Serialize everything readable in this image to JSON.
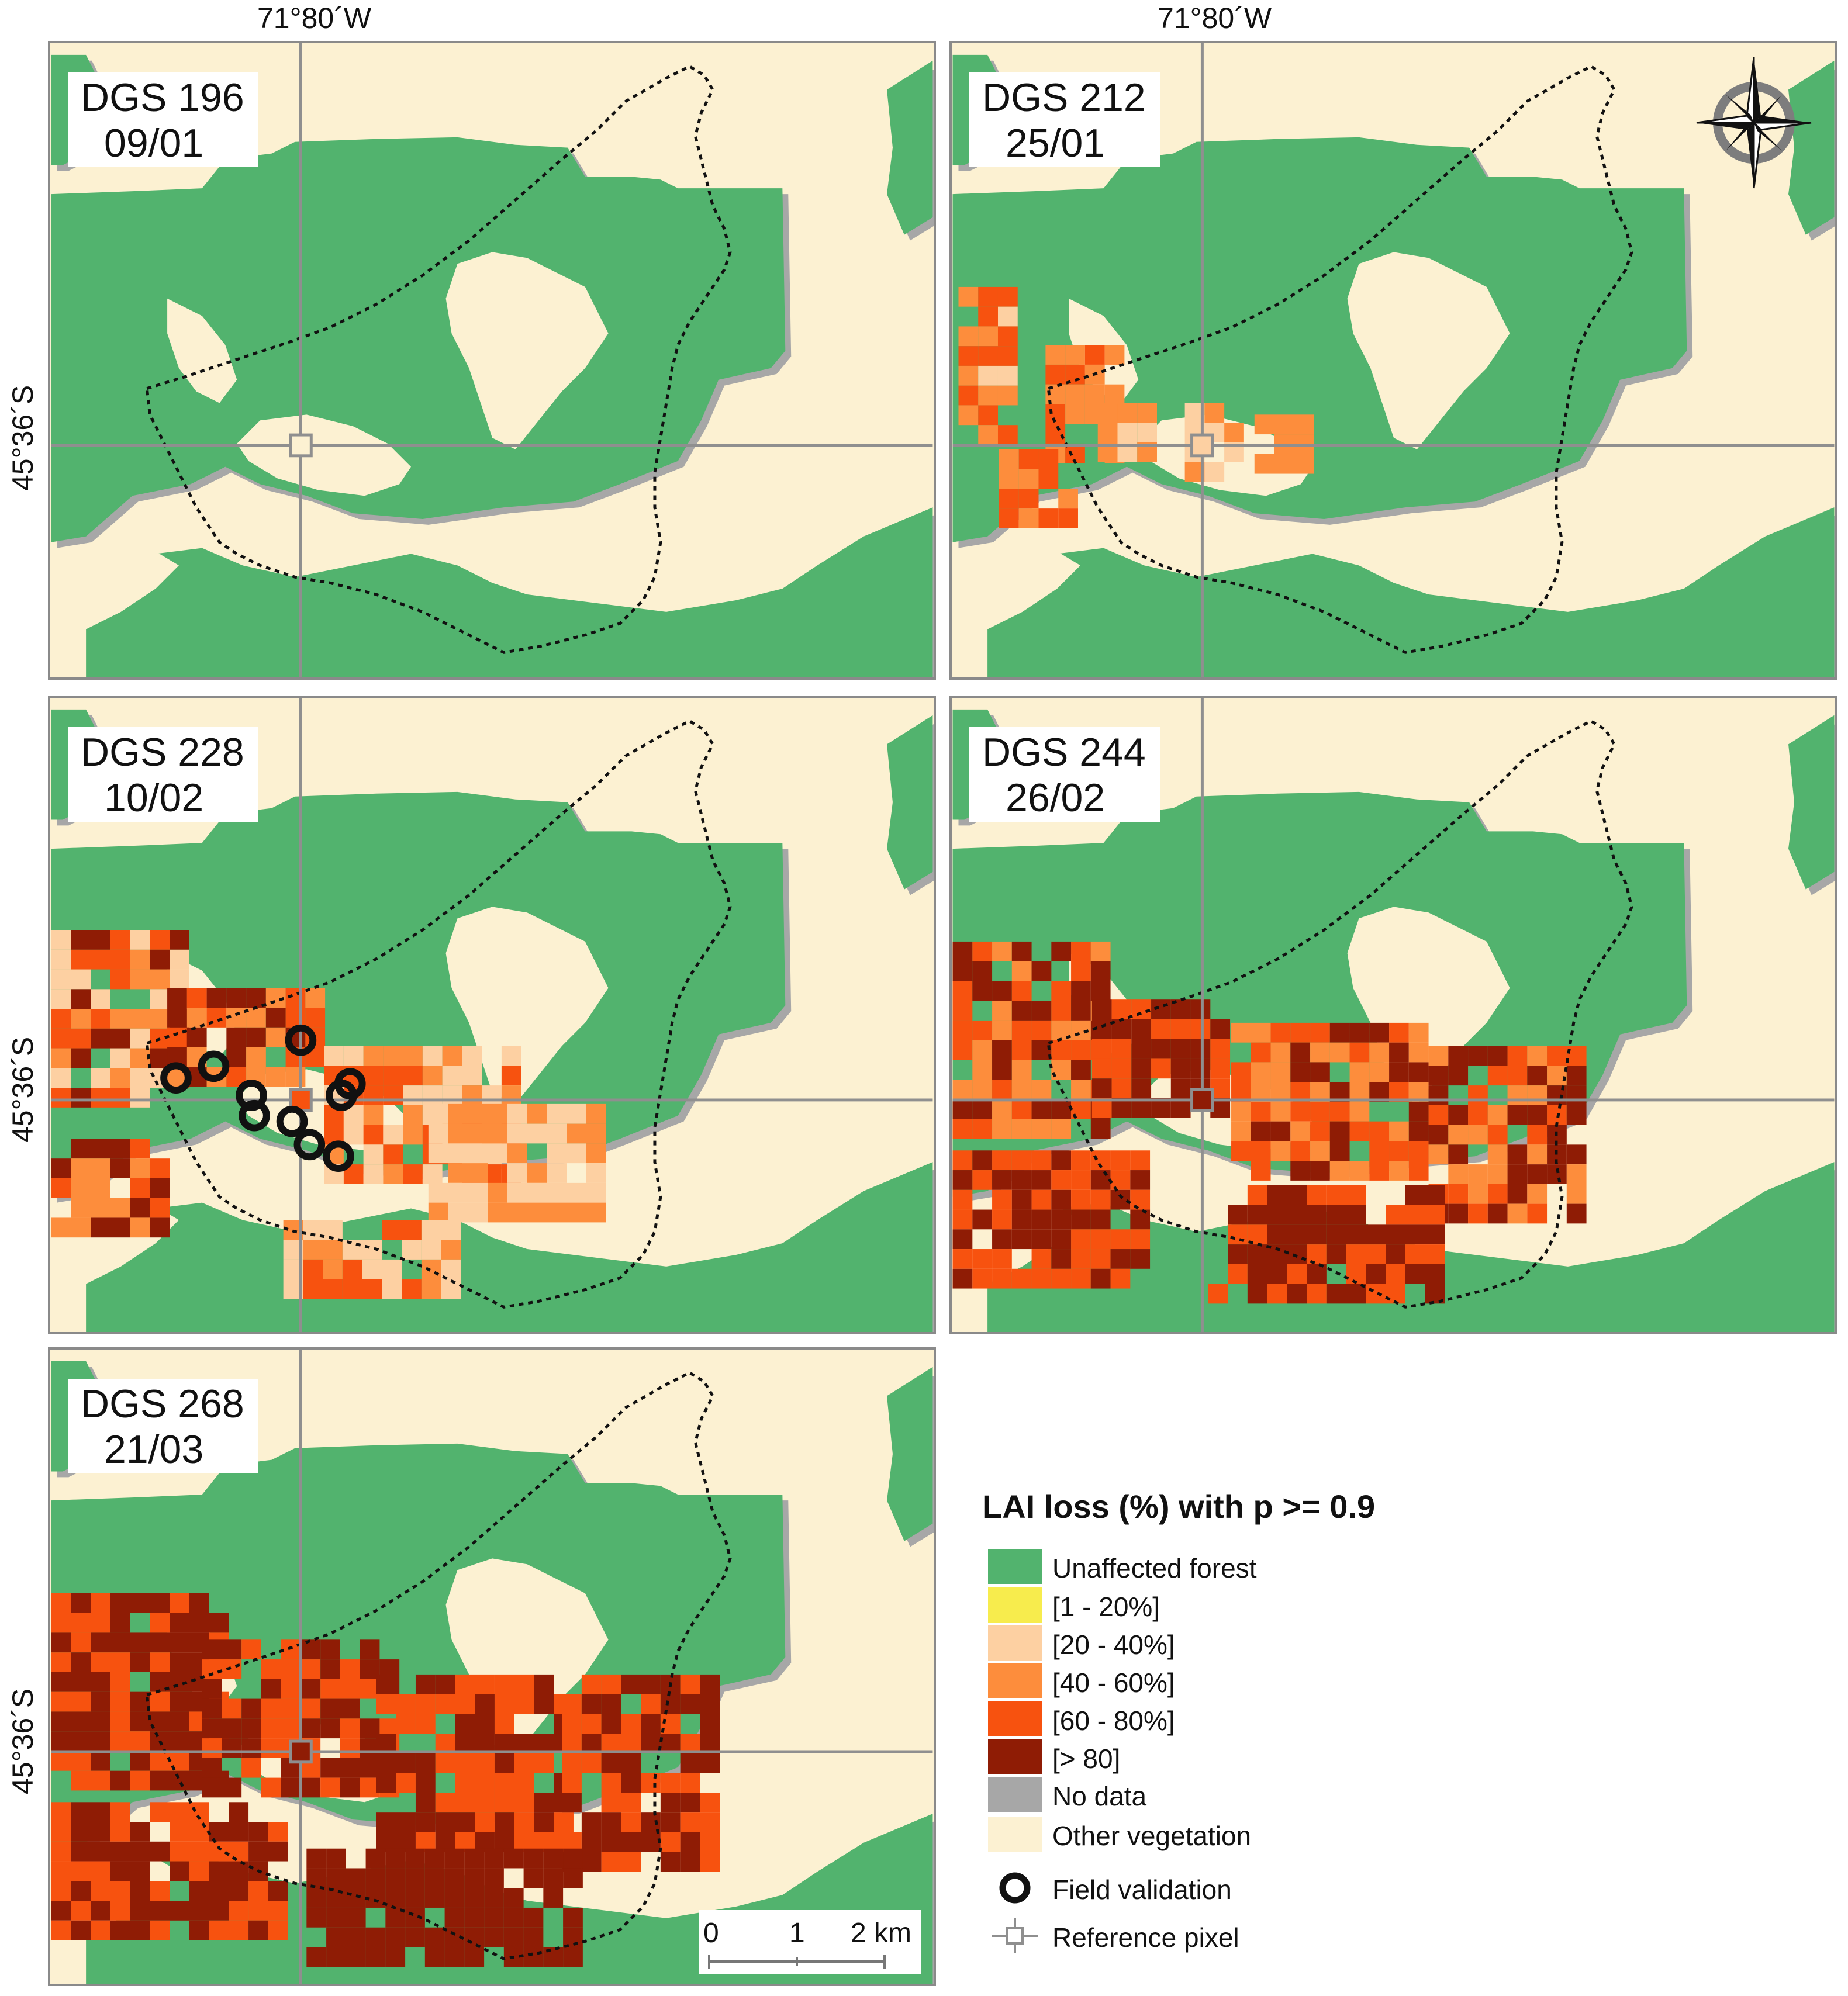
{
  "longitude_label": "71°80´W",
  "latitude_label": "45°36´S",
  "panels": [
    {
      "dgs": "DGS 196",
      "date": "09/01",
      "stage": 0
    },
    {
      "dgs": "DGS 212",
      "date": "25/01",
      "stage": 1
    },
    {
      "dgs": "DGS 228",
      "date": "10/02",
      "stage": 2
    },
    {
      "dgs": "DGS 244",
      "date": "26/02",
      "stage": 3
    },
    {
      "dgs": "DGS 268",
      "date": "21/03",
      "stage": 4
    }
  ],
  "legend": {
    "title": "LAI loss (%) with p >= 0.9",
    "items": [
      {
        "label": "Unaffected forest",
        "color": "#52b36e"
      },
      {
        "label": "[1 - 20%]",
        "color": "#f7ec4d"
      },
      {
        "label": "[20 - 40%]",
        "color": "#fdd0a2"
      },
      {
        "label": "[40 - 60%]",
        "color": "#fd8d3c"
      },
      {
        "label": "[60 - 80%]",
        "color": "#f7520f"
      },
      {
        "label": "[> 80]",
        "color": "#8f1c05"
      },
      {
        "label": "No data",
        "color": "#a7a7a7"
      },
      {
        "label": "Other vegetation",
        "color": "#fcf1d2"
      }
    ],
    "symbols": [
      {
        "label": "Field validation",
        "icon": "ring-icon"
      },
      {
        "label": "Reference pixel",
        "icon": "crosshair-square-icon"
      }
    ]
  },
  "scale_bar": {
    "ticks": [
      "0",
      "1",
      "2 km"
    ]
  },
  "field_validation_points": 10
}
